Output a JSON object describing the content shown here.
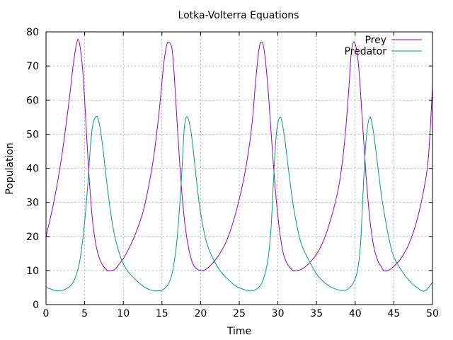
{
  "chart_data": {
    "type": "line",
    "title": "Lotka-Volterra Equations",
    "xlabel": "Time",
    "ylabel": "Population",
    "xlim": [
      0,
      50
    ],
    "ylim": [
      0,
      80
    ],
    "xticks": [
      0,
      5,
      10,
      15,
      20,
      25,
      30,
      35,
      40,
      45,
      50
    ],
    "yticks": [
      0,
      10,
      20,
      30,
      40,
      50,
      60,
      70,
      80
    ],
    "grid": true,
    "legend_position": "top-right",
    "series": [
      {
        "name": "Prey",
        "color": "#9400d3",
        "x": [
          0,
          1,
          2,
          3,
          3.5,
          4,
          4.3,
          4.7,
          5,
          5.5,
          6,
          6.5,
          7,
          7.5,
          8,
          8.5,
          9,
          9.5,
          10,
          10.5,
          11,
          11.7,
          12.7,
          13.7,
          14.2,
          14.7,
          15.2,
          15.6,
          15.9,
          16.3,
          16.6,
          17,
          17.5,
          18,
          18.5,
          19,
          19.5,
          20,
          20.3,
          20.8,
          21.5,
          22.5,
          23.5,
          24.5,
          25.5,
          26.2,
          26.7,
          27.1,
          27.5,
          27.8,
          28.2,
          28.7,
          29.2,
          29.7,
          30.2,
          30.7,
          31.2,
          31.7,
          32,
          32.5,
          33.2,
          34.2,
          35.2,
          36.2,
          37.2,
          37.9,
          38.4,
          38.8,
          39.2,
          39.5,
          39.9,
          40.4,
          40.9,
          41.4,
          41.9,
          42.4,
          42.9,
          43.4,
          43.7,
          44.2,
          44.9,
          45.9,
          46.9,
          47.9,
          48.9,
          49.5,
          50
        ],
        "values": [
          20,
          30,
          43,
          60,
          70,
          77,
          77,
          70,
          60,
          40,
          25,
          17,
          13,
          11,
          10,
          10,
          10.5,
          12,
          13.5,
          15.5,
          17.8,
          21.5,
          28.5,
          40,
          48,
          58,
          70,
          76,
          77,
          75,
          67,
          52,
          35,
          23,
          16,
          12,
          10.5,
          10,
          10,
          10.5,
          12,
          15,
          19.5,
          26.5,
          36,
          45,
          54,
          65,
          74,
          77,
          75,
          64,
          48,
          33,
          22,
          15,
          12,
          10.5,
          10,
          10,
          10.5,
          12.5,
          15.5,
          20.5,
          28,
          35,
          43,
          52,
          64,
          74,
          77,
          71,
          55,
          38,
          25,
          17,
          13,
          11,
          10,
          10,
          11,
          13.5,
          17.5,
          24,
          34,
          44,
          64
        ]
      },
      {
        "name": "Predator",
        "color": "#009e73",
        "x": [
          0,
          0.7,
          1.5,
          2.5,
          3.5,
          4.3,
          4.8,
          5.3,
          5.7,
          6,
          6.4,
          6.8,
          7.3,
          7.8,
          8.3,
          8.8,
          9.3,
          9.8,
          10.5,
          11.5,
          12.5,
          13.5,
          14.5,
          15.2,
          15.8,
          16.3,
          16.8,
          17.2,
          17.6,
          17.9,
          18.3,
          18.8,
          19.3,
          19.8,
          20.3,
          20.8,
          21.5,
          22.5,
          23.5,
          24.5,
          25.5,
          26.5,
          27.2,
          27.7,
          28.2,
          28.7,
          29.1,
          29.4,
          29.8,
          30.3,
          30.8,
          31.3,
          31.8,
          32.3,
          33,
          34,
          35,
          36,
          37,
          38,
          38.7,
          39.3,
          39.8,
          40.3,
          40.7,
          41,
          41.4,
          41.9,
          42.4,
          42.9,
          43.4,
          43.9,
          44.4,
          45,
          46,
          47,
          48,
          49,
          50
        ],
        "values": [
          5,
          4.5,
          4,
          4.5,
          6.5,
          12,
          20,
          32,
          45,
          52,
          55,
          54,
          47,
          37,
          28,
          21,
          16.5,
          13,
          10,
          7.5,
          5.5,
          4.3,
          4,
          4.5,
          6,
          9,
          16,
          26,
          40,
          52,
          55,
          50,
          40,
          30,
          23,
          18,
          14,
          10,
          7.5,
          5.5,
          4.5,
          4,
          4.5,
          5.5,
          8,
          13,
          22,
          35,
          50,
          55,
          50,
          41,
          32,
          25,
          18,
          13,
          9,
          6.5,
          5,
          4.2,
          4.2,
          5,
          6.5,
          10,
          18,
          32,
          48,
          55,
          50,
          41,
          32,
          25,
          19,
          14,
          10,
          7,
          5,
          4,
          6.5
        ]
      }
    ]
  }
}
